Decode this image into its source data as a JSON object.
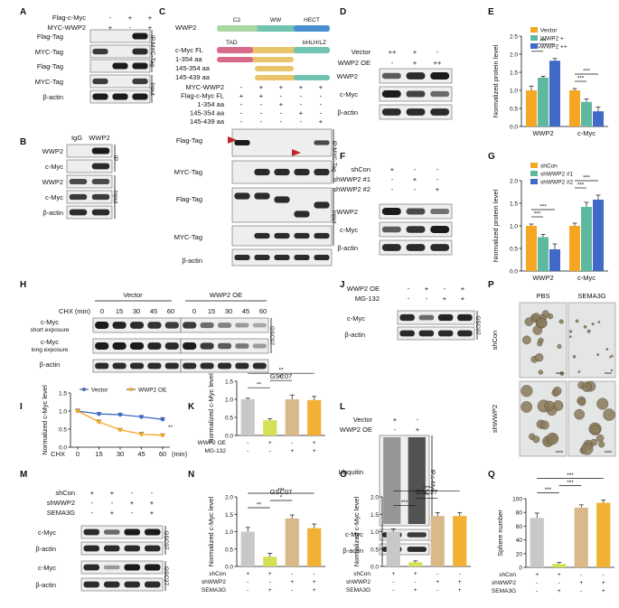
{
  "panels": {
    "A": {
      "label": "A",
      "row_labels": [
        "Flag-c-Myc",
        "MYC-WWP2"
      ],
      "row_values": [
        [
          "-",
          "+",
          "+"
        ],
        [
          "+",
          "-",
          "+"
        ]
      ],
      "blots": [
        "Flag-Tag",
        "MYC-Tag",
        "Flag-Tag",
        "MYC-Tag",
        "β-actin"
      ],
      "groups": [
        "IP:MYC-Tag",
        "Input"
      ]
    },
    "B": {
      "label": "B",
      "columns": [
        "IgG",
        "WWP2"
      ],
      "blots": [
        "WWP2",
        "c-Myc",
        "WWP2",
        "c-Myc",
        "β-actin"
      ],
      "groups": [
        "IP",
        "Input"
      ]
    },
    "C": {
      "label": "C",
      "protein_rows": [
        "WWP2",
        "c-Myc FL",
        "1-354 aa",
        "145-354 aa",
        "145-439 aa"
      ],
      "domains": [
        "C2",
        "WW",
        "HECT",
        "TAD",
        "bHLH/LZ"
      ],
      "condition_rows": [
        "MYC-WWP2",
        "Flag-c-Myc FL",
        "1-354 aa",
        "145-354 aa",
        "145-439 aa"
      ],
      "condition_values": [
        [
          "-",
          "+",
          "+",
          "+",
          "+"
        ],
        [
          "+",
          "+",
          "-",
          "-",
          "-"
        ],
        [
          "-",
          "-",
          "+",
          "-",
          "-"
        ],
        [
          "-",
          "-",
          "-",
          "+",
          "-"
        ],
        [
          "-",
          "-",
          "-",
          "-",
          "+"
        ]
      ],
      "blots": [
        "Flag-Tag",
        "MYC-Tag",
        "Flag-Tag",
        "MYC-Tag",
        "β-actin"
      ],
      "groups": [
        "IP:MYC-Tag",
        "Input"
      ]
    },
    "D": {
      "label": "D",
      "row_labels": [
        "Vector",
        "WWP2 OE"
      ],
      "row_values": [
        [
          "++",
          "+",
          "-"
        ],
        [
          "-",
          "+",
          "++"
        ]
      ],
      "blots": [
        "WWP2",
        "c-Myc",
        "β-actin"
      ]
    },
    "E": {
      "label": "E"
    },
    "F": {
      "label": "F",
      "row_labels": [
        "shCon",
        "shWWP2 #1",
        "shWWP2 #2"
      ],
      "row_values": [
        [
          "+",
          "-",
          "-"
        ],
        [
          "-",
          "+",
          "-"
        ],
        [
          "-",
          "-",
          "+"
        ]
      ],
      "blots": [
        "WWP2",
        "c-Myc",
        "β-actin"
      ]
    },
    "G": {
      "label": "G"
    },
    "H": {
      "label": "H",
      "groups": [
        "Vector",
        "WWP2 OE"
      ],
      "chx_label": "CHX (min)",
      "times": [
        "0",
        "15",
        "30",
        "45",
        "60",
        "0",
        "15",
        "30",
        "45",
        "60"
      ],
      "blots": [
        "c-Myc",
        "c-Myc",
        "β-actin"
      ],
      "exposures": [
        "short exposure",
        "long exposure"
      ],
      "cell_line": "GSC07"
    },
    "I": {
      "label": "I"
    },
    "J": {
      "label": "J",
      "row_labels": [
        "WWP2 OE",
        "MG-132"
      ],
      "row_values": [
        [
          "-",
          "+",
          "-",
          "+"
        ],
        [
          "-",
          "-",
          "+",
          "+"
        ]
      ],
      "blots": [
        "c-Myc",
        "β-actin"
      ],
      "cell_line": "GSC07"
    },
    "K": {
      "label": "K"
    },
    "L": {
      "label": "L",
      "row_labels": [
        "Vector",
        "WWP2 OE"
      ],
      "row_values": [
        [
          "+",
          "-"
        ],
        [
          "-",
          "+"
        ]
      ],
      "blots": [
        "Ubquitin",
        "c-Myc",
        "β-actin"
      ],
      "groups": [
        "IP:c-Myc",
        "Input"
      ]
    },
    "M": {
      "label": "M",
      "row_labels": [
        "shCon",
        "shWWP2",
        "SEMA3G"
      ],
      "row_values": [
        [
          "+",
          "+",
          "-",
          "-"
        ],
        [
          "-",
          "-",
          "+",
          "+"
        ],
        [
          "-",
          "+",
          "-",
          "+"
        ]
      ],
      "blots": [
        "c-Myc",
        "β-actin",
        "c-Myc",
        "β-actin"
      ],
      "cell_lines": [
        "GSC07",
        "GSC27"
      ]
    },
    "N": {
      "label": "N"
    },
    "O": {
      "label": "O"
    },
    "P": {
      "label": "P",
      "col_labels": [
        "PBS",
        "SEMA3G"
      ],
      "row_labels": [
        "shCon",
        "shWWP2"
      ]
    },
    "Q": {
      "label": "Q"
    }
  },
  "colors": {
    "grey": "#c8c8c8",
    "green": "#5fb8a0",
    "blue": "#4169c8",
    "orange": "#f5a623",
    "lime": "#d4e157",
    "tan": "#d9b98a",
    "gold": "#f2b134",
    "navy": "#3c5fbf",
    "pbs_label": "#3d5fb8",
    "sema_label": "#e8a33a"
  },
  "chart_data": [
    {
      "id": "E",
      "type": "bar",
      "title": "",
      "ylabel": "Normalized protein level",
      "ylim": [
        0,
        2.5
      ],
      "yticks": [
        0.0,
        0.5,
        1.0,
        1.5,
        2.0,
        2.5
      ],
      "categories": [
        "WWP2",
        "c-Myc"
      ],
      "series": [
        {
          "name": "Vector",
          "values": [
            1.0,
            1.0
          ],
          "errors": [
            0.12,
            0.05
          ],
          "color": "#f5a623"
        },
        {
          "name": "WWP2 +",
          "values": [
            1.35,
            0.68
          ],
          "errors": [
            0.04,
            0.08
          ],
          "color": "#5fb8a0"
        },
        {
          "name": "WWP2 ++",
          "values": [
            1.82,
            0.42
          ],
          "errors": [
            0.06,
            0.12
          ],
          "color": "#4169c8"
        }
      ],
      "significance": [
        "***",
        "***",
        "***",
        "***"
      ]
    },
    {
      "id": "G",
      "type": "bar",
      "title": "",
      "ylabel": "Normalized protein level",
      "ylim": [
        0,
        2.0
      ],
      "yticks": [
        0.0,
        0.5,
        1.0,
        1.5,
        2.0
      ],
      "categories": [
        "WWP2",
        "c-Myc"
      ],
      "series": [
        {
          "name": "shCon",
          "values": [
            1.0,
            1.0
          ],
          "errors": [
            0.04,
            0.06
          ],
          "color": "#f5a623"
        },
        {
          "name": "shWWP2 #1",
          "values": [
            0.75,
            1.42
          ],
          "errors": [
            0.06,
            0.1
          ],
          "color": "#5fb8a0"
        },
        {
          "name": "shWWP2 #2",
          "values": [
            0.48,
            1.58
          ],
          "errors": [
            0.12,
            0.1
          ],
          "color": "#4169c8"
        }
      ],
      "significance": [
        "***",
        "***",
        "***",
        "***"
      ]
    },
    {
      "id": "I",
      "type": "line",
      "title": "",
      "xlabel": "CHX",
      "xunit": "(min)",
      "ylabel": "Normalized c-Myc level",
      "x": [
        0,
        15,
        30,
        45,
        60
      ],
      "ylim": [
        0,
        1.5
      ],
      "yticks": [
        0.0,
        0.5,
        1.0,
        1.5
      ],
      "series": [
        {
          "name": "Vector",
          "values": [
            1.0,
            0.92,
            0.9,
            0.84,
            0.77
          ],
          "errors": [
            0.05,
            0.04,
            0.04,
            0.04,
            0.05
          ],
          "color": "#4169c8"
        },
        {
          "name": "WWP2 OE",
          "values": [
            1.0,
            0.7,
            0.48,
            0.36,
            0.33
          ],
          "errors": [
            0.05,
            0.05,
            0.04,
            0.05,
            0.04
          ],
          "color": "#f5a623"
        }
      ],
      "significance": "**"
    },
    {
      "id": "K",
      "type": "bar",
      "title": "GSC07",
      "ylabel": "Normalized c-Myc level",
      "ylim": [
        0,
        1.5
      ],
      "yticks": [
        0.0,
        0.5,
        1.0,
        1.5
      ],
      "conditions": {
        "WWP2 OE": [
          "-",
          "+",
          "-",
          "+"
        ],
        "MG-132": [
          "-",
          "-",
          "+",
          "+"
        ]
      },
      "values": [
        1.0,
        0.42,
        1.0,
        0.98
      ],
      "errors": [
        0.03,
        0.04,
        0.12,
        0.1
      ],
      "colors": [
        "#c8c8c8",
        "#d4e157",
        "#d9b98a",
        "#f2b134"
      ],
      "significance": [
        "**",
        "**",
        "**"
      ]
    },
    {
      "id": "N",
      "type": "bar",
      "title": "GSC07",
      "ylabel": "Normalized c-Myc level",
      "ylim": [
        0,
        2.0
      ],
      "yticks": [
        0.0,
        0.5,
        1.0,
        1.5,
        2.0
      ],
      "conditions": {
        "shCon": [
          "+",
          "+",
          "-",
          "-"
        ],
        "shWWP2": [
          "-",
          "-",
          "+",
          "+"
        ],
        "SEMA3G": [
          "-",
          "+",
          "-",
          "+"
        ]
      },
      "values": [
        1.0,
        0.28,
        1.38,
        1.1
      ],
      "errors": [
        0.12,
        0.1,
        0.1,
        0.12
      ],
      "colors": [
        "#c8c8c8",
        "#d4e157",
        "#d9b98a",
        "#f2b134"
      ],
      "significance": [
        "**",
        "*",
        "***"
      ]
    },
    {
      "id": "O",
      "type": "bar",
      "title": "GSC27",
      "ylabel": "Normalized c-Myc level",
      "ylim": [
        0,
        2.0
      ],
      "yticks": [
        0.0,
        0.5,
        1.0,
        1.5,
        2.0
      ],
      "conditions": {
        "shCon": [
          "+",
          "+",
          "-",
          "-"
        ],
        "shWWP2": [
          "-",
          "-",
          "+",
          "+"
        ],
        "SEMA3G": [
          "-",
          "+",
          "-",
          "+"
        ]
      },
      "values": [
        1.0,
        0.12,
        1.45,
        1.45
      ],
      "errors": [
        0.08,
        0.04,
        0.1,
        0.1
      ],
      "colors": [
        "#c8c8c8",
        "#d4e157",
        "#d9b98a",
        "#f2b134"
      ],
      "significance": [
        "***",
        "**",
        "***"
      ]
    },
    {
      "id": "Q",
      "type": "bar",
      "title": "",
      "ylabel": "Sphere number",
      "ylim": [
        0,
        100
      ],
      "yticks": [
        0,
        20,
        40,
        60,
        80,
        100
      ],
      "conditions": {
        "shCon": [
          "+",
          "+",
          "-",
          "-"
        ],
        "shWWP2": [
          "-",
          "-",
          "+",
          "+"
        ],
        "SEMA3G": [
          "-",
          "+",
          "-",
          "+"
        ]
      },
      "values": [
        72,
        5,
        87,
        94
      ],
      "errors": [
        7,
        2,
        4,
        4
      ],
      "colors": [
        "#c8c8c8",
        "#d4e157",
        "#d9b98a",
        "#f2b134"
      ],
      "significance": [
        "***",
        "***",
        "***"
      ]
    }
  ]
}
